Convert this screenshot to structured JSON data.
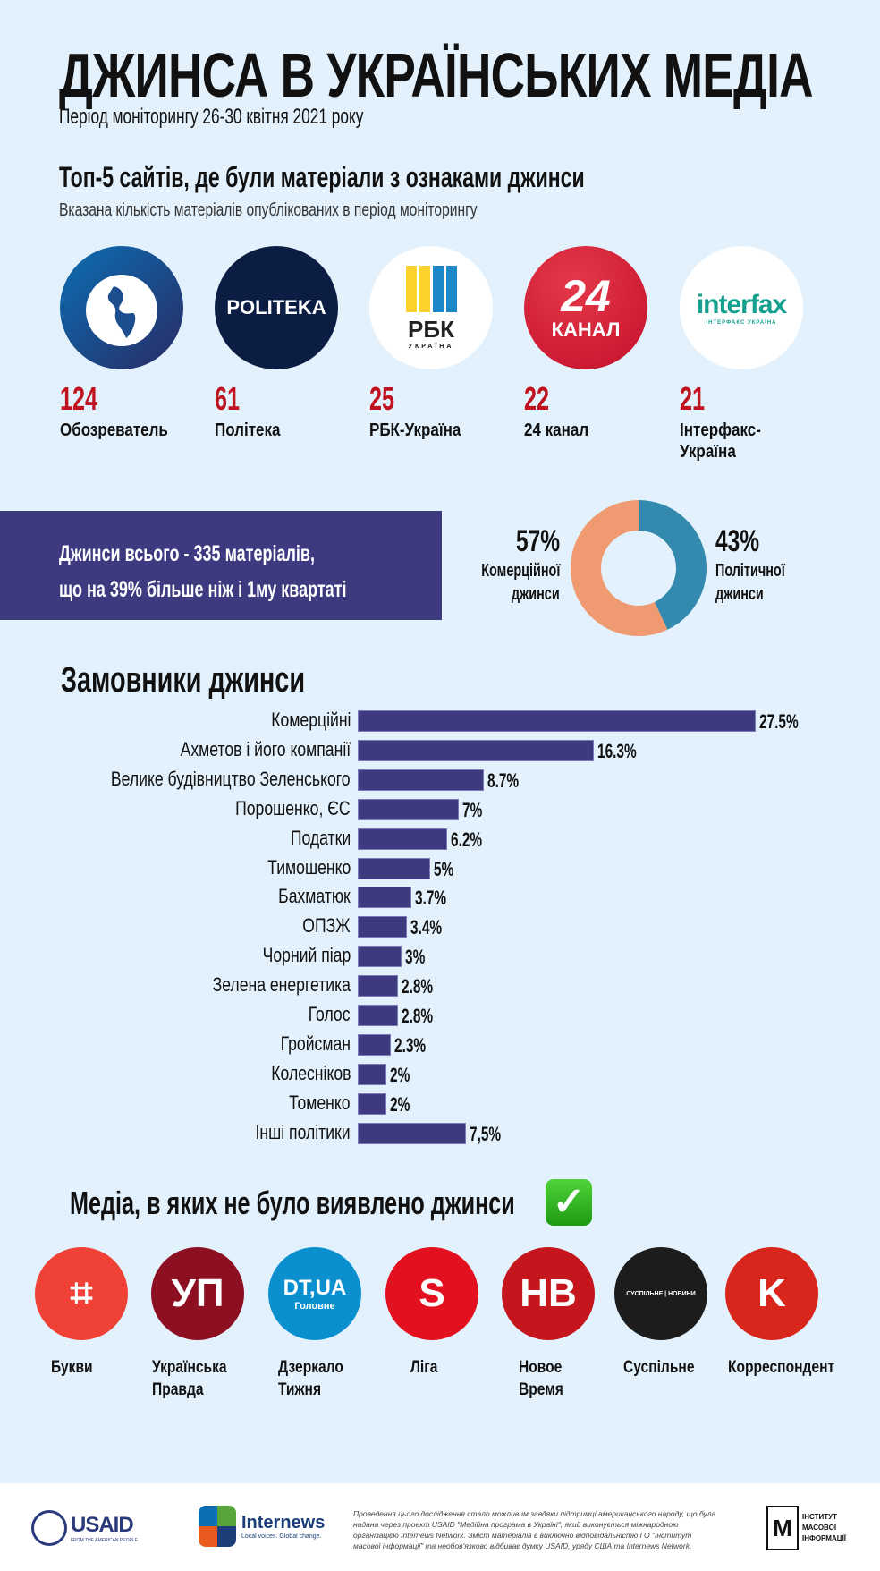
{
  "header": {
    "title": "ДЖИНСА В УКРАЇНСЬКИХ МЕДІА",
    "period": "Період моніторингу 26-30 квітня 2021 року"
  },
  "top5": {
    "heading": "Топ-5 сайтів, де були матеріали з ознаками джинси",
    "subheading": "Вказана кількість матеріалів опублікованих в період моніторингу",
    "sites": [
      {
        "name": "Обозреватель",
        "count": "124",
        "logo_text": ""
      },
      {
        "name": "Політека",
        "count": "61",
        "logo_text": "POLITEKA"
      },
      {
        "name": "РБК-Україна",
        "count": "25",
        "logo_text": "РБК",
        "logo_sub": "УКРАЇНА"
      },
      {
        "name": "24 канал",
        "count": "22",
        "logo_text": "24",
        "logo_sub": "КАНАЛ"
      },
      {
        "name": "Інтерфакс-Україна",
        "name_line1": "Інтерфакс-",
        "name_line2": "Україна",
        "count": "21",
        "logo_text": "interfax",
        "logo_sub": "ІНТЕРФАКС  УКРАЇНА"
      }
    ]
  },
  "total": {
    "line1": "Джинси всього - 335 матеріалів,",
    "line2": "що на 39% більше ніж і 1му квартаті"
  },
  "chart_data": [
    {
      "type": "pie",
      "donut": true,
      "slices": [
        {
          "label": "Комерційної джинси",
          "label_line1": "Комерційної",
          "label_line2": "джинси",
          "value": 57,
          "display": "57%",
          "color": "#f09a72"
        },
        {
          "label": "Політичної джинси",
          "label_line1": "Політичної",
          "label_line2": "джинси",
          "value": 43,
          "display": "43%",
          "color": "#338aae"
        }
      ]
    },
    {
      "type": "bar",
      "orientation": "horizontal",
      "title": "Замовники джинси",
      "color": "#3d3a80",
      "categories": [
        "Комерційні",
        "Ахметов і його компанії",
        "Велике будівництво Зеленського",
        "Порошенко, ЄС",
        "Податки",
        "Тимошенко",
        "Бахматюк",
        "ОПЗЖ",
        "Чорний піар",
        "Зелена енергетика",
        "Голос",
        "Гройсман",
        "Колесніков",
        "Томенко",
        "Інші політики"
      ],
      "values": [
        27.5,
        16.3,
        8.7,
        7,
        6.2,
        5,
        3.7,
        3.4,
        3,
        2.8,
        2.8,
        2.3,
        2,
        2,
        7.5
      ],
      "labels": [
        "27.5%",
        "16.3%",
        "8.7%",
        "7%",
        "6.2%",
        "5%",
        "3.7%",
        "3.4%",
        "3%",
        "2.8%",
        "2.8%",
        "2.3%",
        "2%",
        "2%",
        "7,5%"
      ]
    }
  ],
  "clean_media": {
    "heading": "Медіа, в яких не було виявлено джинси",
    "check_icon": "✓",
    "items": [
      {
        "l1": "Букви",
        "l2": "",
        "bg": "#ef4136",
        "logo": "⌗"
      },
      {
        "l1": "Українська",
        "l2": "Правда",
        "bg": "#8c0f22",
        "logo": "УП"
      },
      {
        "l1": "Дзеркало",
        "l2": "Тижня",
        "bg": "#0a8fcf",
        "logo": "DT,UA",
        "logo_sub": "Головне"
      },
      {
        "l1": "Ліга",
        "l2": "",
        "bg": "#e3101f",
        "logo": "S"
      },
      {
        "l1": "Новое",
        "l2": "Время",
        "bg": "#c4161c",
        "logo": "HB"
      },
      {
        "l1": "Суспільне",
        "l2": "",
        "bg": "#1c1c1c",
        "logo": "СУСПІЛЬНЕ | НОВИНИ"
      },
      {
        "l1": "Корреспондент",
        "l2": "",
        "bg": "#d9261c",
        "logo": "K"
      }
    ]
  },
  "footer": {
    "usaid": "USAID",
    "usaid_sub": "FROM THE AMERICAN PEOPLE",
    "internews": "Internews",
    "internews_sub": "Local voices. Global change.",
    "disclaimer": "Проведення цього дослідження стало можливим завдяки підтримці американського народу, що була надана через проект USAID \"Медійна програма в Україні\", який виконується міжнародною організацією Internews Network. Зміст матеріалів є виключно відповідальністю ГО \"Інститут масової інформації\" та необов'язково відбиває думку USAID, уряду США та Internews Network.",
    "imi_mark": "М",
    "imi_l1": "ІНСТИТУТ",
    "imi_l2": "МАСОВОЇ",
    "imi_l3": "ІНФОРМАЦІЇ"
  }
}
